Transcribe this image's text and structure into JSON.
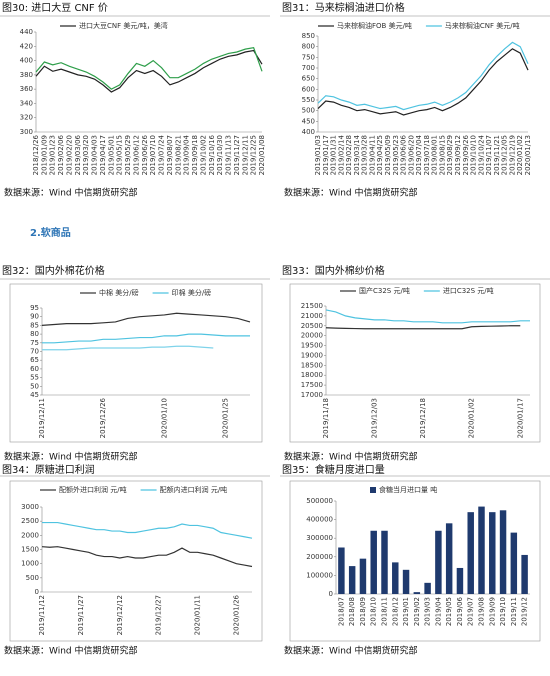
{
  "section_heading": "2.软商品",
  "chart_data": [
    {
      "type": "line",
      "title": "图30: 进口大豆 CNF 价",
      "source": "数据来源：Wind 中信期货研究部",
      "categories": [
        "2018/12/26",
        "2019/01/09",
        "2019/01/23",
        "2019/02/06",
        "2019/02/20",
        "2019/03/06",
        "2019/03/20",
        "2019/04/03",
        "2019/04/17",
        "2019/05/01",
        "2019/05/15",
        "2019/05/29",
        "2019/06/12",
        "2019/06/26",
        "2019/07/10",
        "2019/07/24",
        "2019/08/07",
        "2019/08/21",
        "2019/09/04",
        "2019/09/18",
        "2019/10/02",
        "2019/10/16",
        "2019/10/30",
        "2019/11/13",
        "2019/11/27",
        "2019/12/11",
        "2019/12/25",
        "2020/01/08"
      ],
      "series": [
        {
          "name": "进口大豆CNF 美元/吨，美湾",
          "color": "#222222",
          "values": [
            378,
            392,
            385,
            388,
            384,
            380,
            378,
            374,
            366,
            356,
            362,
            376,
            386,
            382,
            386,
            378,
            366,
            370,
            376,
            382,
            390,
            396,
            402,
            406,
            408,
            412,
            414,
            395
          ]
        },
        {
          "color": "#2e9e4a",
          "values": [
            384,
            398,
            394,
            397,
            392,
            388,
            384,
            378,
            370,
            360,
            366,
            382,
            396,
            392,
            400,
            390,
            376,
            376,
            382,
            388,
            396,
            402,
            406,
            410,
            412,
            416,
            418,
            385
          ]
        }
      ],
      "ylim": [
        300,
        440
      ],
      "yticks": [
        300,
        320,
        340,
        360,
        380,
        400,
        420,
        440
      ]
    },
    {
      "type": "line",
      "title": "图31：马来棕榈油进口价格",
      "source": "数据来源：Wind 中信期货研究部",
      "categories": [
        "2019/01/03",
        "2019/01/17",
        "2019/01/31",
        "2019/02/14",
        "2019/02/28",
        "2019/03/14",
        "2019/03/28",
        "2019/04/11",
        "2019/04/25",
        "2019/05/09",
        "2019/05/23",
        "2019/06/06",
        "2019/06/20",
        "2019/07/04",
        "2019/07/18",
        "2019/08/01",
        "2019/08/15",
        "2019/08/29",
        "2019/09/12",
        "2019/09/26",
        "2019/10/10",
        "2019/10/24",
        "2019/11/07",
        "2019/11/21",
        "2019/12/05",
        "2019/12/19",
        "2020/01/02",
        "2020/01/13"
      ],
      "series": [
        {
          "name": "马来棕榈油FOB 美元/吨",
          "color": "#222222",
          "values": [
            510,
            545,
            540,
            525,
            515,
            500,
            505,
            495,
            485,
            490,
            495,
            480,
            490,
            500,
            505,
            515,
            500,
            515,
            535,
            560,
            600,
            640,
            690,
            730,
            760,
            790,
            770,
            690
          ]
        },
        {
          "name": "马来棕榈油CNF 美元/吨",
          "color": "#4fc3e0",
          "values": [
            535,
            570,
            565,
            550,
            540,
            525,
            530,
            520,
            510,
            515,
            520,
            505,
            515,
            525,
            530,
            540,
            525,
            540,
            560,
            585,
            625,
            665,
            715,
            755,
            790,
            820,
            800,
            720
          ]
        }
      ],
      "ylim": [
        400,
        850
      ],
      "yticks": [
        400,
        450,
        500,
        550,
        600,
        650,
        700,
        750,
        800,
        850
      ]
    },
    {
      "type": "line",
      "title": "图32：国内外棉花价格",
      "source": "数据来源：Wind 中信期货研究部",
      "categories": [
        "2019/12/11",
        null,
        null,
        null,
        null,
        "2019/12/26",
        null,
        null,
        null,
        null,
        "2020/01/10",
        null,
        null,
        null,
        null,
        "2020/01/25",
        null,
        null
      ],
      "series": [
        {
          "name": "中棉 美分/磅",
          "color": "#333333",
          "values": [
            85,
            85.5,
            86,
            86,
            86,
            86.5,
            87,
            89,
            90,
            90.5,
            91,
            92,
            91.5,
            91,
            90.5,
            90,
            89,
            87
          ]
        },
        {
          "name": "印棉 美分/磅",
          "color": "#4fc3e0",
          "values": [
            75,
            75,
            75.5,
            76,
            76,
            77,
            77,
            77.5,
            78,
            78,
            79,
            79,
            80,
            80,
            79.5,
            79,
            79,
            79
          ]
        },
        {
          "color": "#7fd3ea",
          "values": [
            71,
            71,
            71,
            71.5,
            72,
            72,
            72,
            72,
            72,
            72.5,
            72.5,
            73,
            73,
            72.5,
            72,
            null,
            null,
            null
          ]
        }
      ],
      "ylim": [
        45,
        95
      ],
      "yticks": [
        45,
        50,
        55,
        60,
        65,
        70,
        75,
        80,
        85,
        90,
        95
      ]
    },
    {
      "type": "line",
      "title": "图33：国内外棉纱价格",
      "source": "数据来源：Wind 中信期货研究部",
      "categories": [
        "2019/11/18",
        null,
        null,
        null,
        null,
        "2019/12/03",
        null,
        null,
        null,
        null,
        "2019/12/18",
        null,
        null,
        null,
        null,
        "2020/01/02",
        null,
        null,
        null,
        null,
        "2020/01/17",
        null
      ],
      "series": [
        {
          "name": "国产C32S 元/吨",
          "color": "#333333",
          "values": [
            20400,
            20380,
            20370,
            20360,
            20350,
            20350,
            20350,
            20350,
            20350,
            20350,
            20350,
            20350,
            20350,
            20350,
            20350,
            20450,
            20470,
            20480,
            20490,
            20500,
            20500,
            null
          ]
        },
        {
          "name": "进口C32S 元/吨",
          "color": "#4fc3e0",
          "values": [
            21300,
            21200,
            21000,
            20900,
            20850,
            20800,
            20800,
            20750,
            20750,
            20700,
            20700,
            20700,
            20650,
            20650,
            20650,
            20700,
            20700,
            20700,
            20700,
            20700,
            20750,
            20750
          ]
        }
      ],
      "ylim": [
        17000,
        21500
      ],
      "yticks": [
        17000,
        17500,
        18000,
        18500,
        19000,
        19500,
        20000,
        20500,
        21000,
        21500
      ]
    },
    {
      "type": "line",
      "title": "图34：原糖进口利润",
      "source": "数据来源：Wind 中信期货研究部",
      "categories": [
        "2019/11/12",
        null,
        null,
        null,
        null,
        "2019/11/27",
        null,
        null,
        null,
        null,
        "2019/12/12",
        null,
        null,
        null,
        null,
        "2019/12/27",
        null,
        null,
        null,
        null,
        "2020/01/11",
        null,
        null,
        null,
        null,
        "2020/01/26",
        null,
        null
      ],
      "series": [
        {
          "name": "配额外进口利润 元/吨",
          "color": "#333333",
          "values": [
            1600,
            1580,
            1600,
            1550,
            1500,
            1450,
            1400,
            1300,
            1250,
            1250,
            1200,
            1250,
            1200,
            1200,
            1250,
            1300,
            1300,
            1400,
            1550,
            1400,
            1400,
            1350,
            1300,
            1200,
            1100,
            1000,
            950,
            900
          ]
        },
        {
          "name": "配额内进口利润 元/吨",
          "color": "#4fc3e0",
          "values": [
            2450,
            2450,
            2450,
            2400,
            2350,
            2300,
            2250,
            2200,
            2200,
            2150,
            2150,
            2100,
            2100,
            2150,
            2200,
            2250,
            2250,
            2300,
            2400,
            2350,
            2350,
            2300,
            2250,
            2100,
            2050,
            2000,
            1950,
            1900
          ]
        }
      ],
      "ylim": [
        0,
        3000
      ],
      "yticks": [
        0,
        500,
        1000,
        1500,
        2000,
        2500,
        3000
      ]
    },
    {
      "type": "bar",
      "title": "图35：食糖月度进口量",
      "source": "数据来源：Wind 中信期货研究部",
      "categories": [
        "2018/07",
        "2018/08",
        "2018/09",
        "2018/10",
        "2018/11",
        "2018/12",
        "2019/01",
        "2019/02",
        "2019/03",
        "2019/04",
        "2019/05",
        "2019/06",
        "2019/07",
        "2019/08",
        "2019/09",
        "2019/10",
        "2019/11",
        "2019/12"
      ],
      "series": [
        {
          "name": "食糖当月进口量 吨",
          "color": "#1f3a6e",
          "values": [
            250000,
            150000,
            190000,
            340000,
            340000,
            170000,
            130000,
            10000,
            60000,
            340000,
            380000,
            140000,
            440000,
            470000,
            440000,
            450000,
            330000,
            210000
          ]
        }
      ],
      "ylim": [
        0,
        500000
      ],
      "yticks": [
        0,
        100000,
        200000,
        300000,
        400000,
        500000
      ]
    }
  ]
}
